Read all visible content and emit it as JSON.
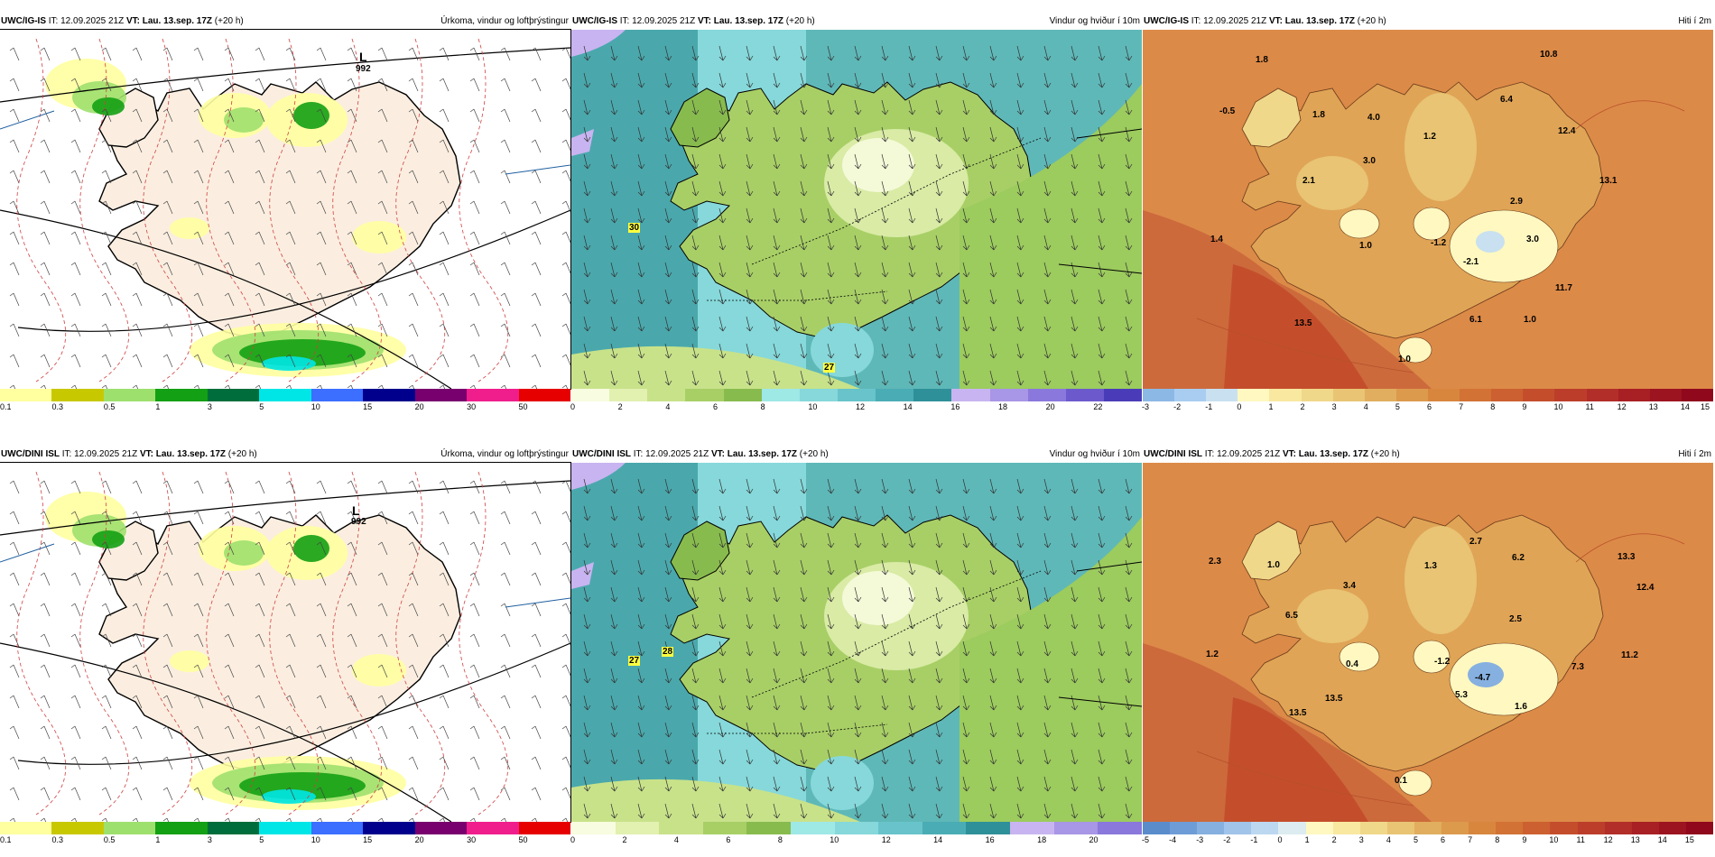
{
  "panels": [
    {
      "id": "p1",
      "model": "UWC/IG-IS",
      "it": "IT: 12.09.2025 21Z",
      "vt_label": "VT:",
      "vt": "Lau. 13.sep. 17Z",
      "lead": "(+20 h)",
      "right_title": "Úrkoma, vindur og loftþrýstingur",
      "colorbar": {
        "colors": [
          "#ffffa0",
          "#c8c800",
          "#9ee06e",
          "#14a014",
          "#006e3c",
          "#00e6e6",
          "#3c6eff",
          "#00008c",
          "#78006e",
          "#f01e8c",
          "#e60000"
        ],
        "ticks": [
          "0.1",
          "0.3",
          "0.5",
          "1",
          "3",
          "5",
          "10",
          "15",
          "20",
          "30",
          "50"
        ]
      },
      "low": {
        "letter": "L",
        "value": "992"
      },
      "values": []
    },
    {
      "id": "p2",
      "model": "UWC/IG-IS",
      "it": "IT: 12.09.2025 21Z",
      "vt_label": "VT:",
      "vt": "Lau. 13.sep. 17Z",
      "lead": "(+20 h)",
      "right_title": "Vindur og hviður í 10m",
      "colorbar": {
        "colors": [
          "#f8fce0",
          "#e2f0b0",
          "#c8e28a",
          "#a8cf66",
          "#88bb4e",
          "#9ee8e6",
          "#86d8da",
          "#68c4ca",
          "#4aacb4",
          "#2e9098",
          "#c8b4f0",
          "#a896e6",
          "#8a78dc",
          "#6c5acc",
          "#4a3cb8"
        ],
        "ticks": [
          "0",
          "2",
          "4",
          "6",
          "8",
          "10",
          "12",
          "14",
          "16",
          "18",
          "20",
          "22"
        ]
      },
      "values": [
        "30",
        "27"
      ]
    },
    {
      "id": "p3",
      "model": "UWC/IG-IS",
      "it": "IT: 12.09.2025 21Z",
      "vt_label": "VT:",
      "vt": "Lau. 13.sep. 17Z",
      "lead": "(+20 h)",
      "right_title": "Hiti í 2m",
      "colorbar": {
        "colors": [
          "#8cb8e6",
          "#a8cdf0",
          "#c8e0f0",
          "#fff8c0",
          "#f8e8a0",
          "#f0d88a",
          "#e8c474",
          "#e0ae5e",
          "#dc9a4c",
          "#d8863e",
          "#d27234",
          "#cc6030",
          "#c44e2c",
          "#bc3e2a",
          "#b22e28",
          "#a82024",
          "#9c1420",
          "#90081c"
        ],
        "ticks": [
          "-3",
          "-2",
          "-1",
          "0",
          "1",
          "2",
          "3",
          "4",
          "5",
          "6",
          "7",
          "8",
          "9",
          "10",
          "11",
          "12",
          "13",
          "14",
          "15"
        ]
      },
      "values": [
        "1.8",
        "10.8",
        "-0.5",
        "1.8",
        "4.0",
        "6.4",
        "12.4",
        "1.2",
        "3.0",
        "13.1",
        "2.1",
        "2.9",
        "3.0",
        "1.4",
        "1.0",
        "-1.2",
        "-2.1",
        "11.7",
        "13.5",
        "6.1",
        "1.0",
        "1.0"
      ]
    },
    {
      "id": "p4",
      "model": "UWC/DINI ISL",
      "it": "IT: 12.09.2025 21Z",
      "vt_label": "VT:",
      "vt": "Lau. 13.sep. 17Z",
      "lead": "(+20 h)",
      "right_title": "Úrkoma, vindur og loftþrýstingur",
      "colorbar": {
        "colors": [
          "#ffffa0",
          "#c8c800",
          "#9ee06e",
          "#14a014",
          "#006e3c",
          "#00e6e6",
          "#3c6eff",
          "#00008c",
          "#78006e",
          "#f01e8c",
          "#e60000"
        ],
        "ticks": [
          "0.1",
          "0.3",
          "0.5",
          "1",
          "3",
          "5",
          "10",
          "15",
          "20",
          "30",
          "50"
        ]
      },
      "low": {
        "letter": "L",
        "value": "992"
      },
      "values": []
    },
    {
      "id": "p5",
      "model": "UWC/DINI ISL",
      "it": "IT: 12.09.2025 21Z",
      "vt_label": "VT:",
      "vt": "Lau. 13.sep. 17Z",
      "lead": "(+20 h)",
      "right_title": "Vindur og hviður í 10m",
      "colorbar": {
        "colors": [
          "#f8fce0",
          "#e2f0b0",
          "#c8e28a",
          "#a8cf66",
          "#88bb4e",
          "#9ee8e6",
          "#86d8da",
          "#68c4ca",
          "#4aacb4",
          "#2e9098",
          "#c8b4f0",
          "#a896e6",
          "#8a78dc"
        ],
        "ticks": [
          "0",
          "2",
          "4",
          "6",
          "8",
          "10",
          "12",
          "14",
          "16",
          "18",
          "20"
        ]
      },
      "values": [
        "27",
        "28"
      ]
    },
    {
      "id": "p6",
      "model": "UWC/DINI ISL",
      "it": "IT: 12.09.2025 21Z",
      "vt_label": "VT:",
      "vt": "Lau. 13.sep. 17Z",
      "lead": "(+20 h)",
      "right_title": "Hiti í 2m",
      "colorbar": {
        "colors": [
          "#5a8ccc",
          "#6e9cd6",
          "#86b0e0",
          "#a0c4ea",
          "#bcd8f0",
          "#dcecf0",
          "#fff8c0",
          "#f8e8a0",
          "#f0d88a",
          "#e8c474",
          "#e0ae5e",
          "#dc9a4c",
          "#d8863e",
          "#d27234",
          "#cc6030",
          "#c44e2c",
          "#bc3e2a",
          "#b22e28",
          "#a82024",
          "#9c1420",
          "#90081c"
        ],
        "ticks": [
          "-5",
          "-4",
          "-3",
          "-2",
          "-1",
          "0",
          "1",
          "2",
          "3",
          "4",
          "5",
          "6",
          "7",
          "8",
          "9",
          "10",
          "11",
          "12",
          "13",
          "14",
          "15"
        ]
      },
      "values": [
        "2.3",
        "1.0",
        "2.7",
        "6.2",
        "13.3",
        "12.4",
        "3.4",
        "1.3",
        "6.5",
        "2.5",
        "1.2",
        "0.4",
        "-1.2",
        "-4.7",
        "7.3",
        "11.2",
        "13.5",
        "13.5",
        "5.3",
        "1.6",
        "0.1"
      ]
    }
  ]
}
